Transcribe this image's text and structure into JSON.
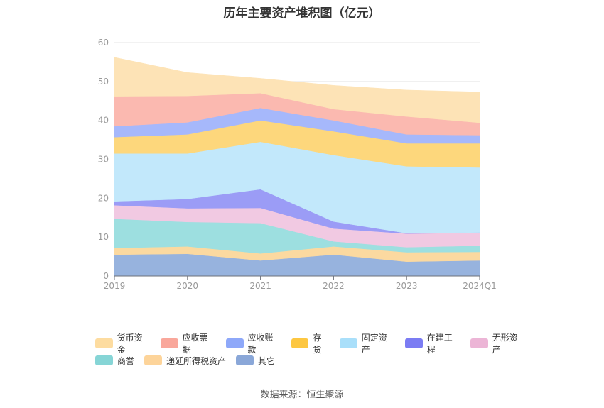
{
  "title": "历年主要资产堆积图（亿元）",
  "source": "数据来源：恒生聚源",
  "chart_data": {
    "type": "area",
    "stacked": true,
    "title": "历年主要资产堆积图（亿元）",
    "categories": [
      "2019",
      "2020",
      "2021",
      "2022",
      "2023",
      "2024Q1"
    ],
    "ylim": [
      0,
      60
    ],
    "yticks": [
      0,
      10,
      20,
      30,
      40,
      50,
      60
    ],
    "grid": true,
    "legend_position": "bottom",
    "series": [
      {
        "name": "其它",
        "color": "#97b3de",
        "values": [
          5.5,
          5.7,
          4.0,
          5.5,
          3.7,
          4.0
        ]
      },
      {
        "name": "递延所得税资产",
        "color": "#fbd9a0",
        "values": [
          1.7,
          1.9,
          1.8,
          2.1,
          2.4,
          2.2
        ]
      },
      {
        "name": "商誉",
        "color": "#9ddfe0",
        "values": [
          7.5,
          6.3,
          7.8,
          1.3,
          1.3,
          1.6
        ]
      },
      {
        "name": "无形资产",
        "color": "#f1c9e2",
        "values": [
          3.5,
          3.5,
          3.9,
          3.3,
          3.5,
          3.3
        ]
      },
      {
        "name": "在建工程",
        "color": "#9b9cf6",
        "values": [
          1.0,
          2.4,
          4.8,
          1.8,
          0.1,
          0.1
        ]
      },
      {
        "name": "固定资产",
        "color": "#c2e8fb",
        "values": [
          12.3,
          11.7,
          12.2,
          17.1,
          17.2,
          16.7
        ]
      },
      {
        "name": "存货",
        "color": "#fdd77c",
        "values": [
          4.2,
          4.9,
          5.5,
          6.1,
          5.9,
          6.2
        ]
      },
      {
        "name": "应收账款",
        "color": "#a6b8fb",
        "values": [
          2.8,
          3.1,
          3.2,
          2.8,
          2.3,
          2.1
        ]
      },
      {
        "name": "应收票据",
        "color": "#fbb9b0",
        "values": [
          7.7,
          6.8,
          3.8,
          2.9,
          4.6,
          3.2
        ]
      },
      {
        "name": "货币资金",
        "color": "#fde3b6",
        "values": [
          10.0,
          6.0,
          3.8,
          6.1,
          6.8,
          7.9
        ]
      }
    ]
  },
  "legend": {
    "row1": [
      {
        "label": "货币资金",
        "color": "#fddca0"
      },
      {
        "label": "应收票据",
        "color": "#f9a79b"
      },
      {
        "label": "应收账款",
        "color": "#8ea8f9"
      },
      {
        "label": "存货",
        "color": "#fdc741"
      },
      {
        "label": "固定资产",
        "color": "#a9dffa"
      },
      {
        "label": "在建工程",
        "color": "#7b7cf3"
      },
      {
        "label": "无形资产",
        "color": "#ecb5d6"
      }
    ],
    "row2": [
      {
        "label": "商誉",
        "color": "#86d5d6"
      },
      {
        "label": "递延所得税资产",
        "color": "#fdd49a"
      },
      {
        "label": "其它",
        "color": "#8aa7d8"
      }
    ]
  }
}
